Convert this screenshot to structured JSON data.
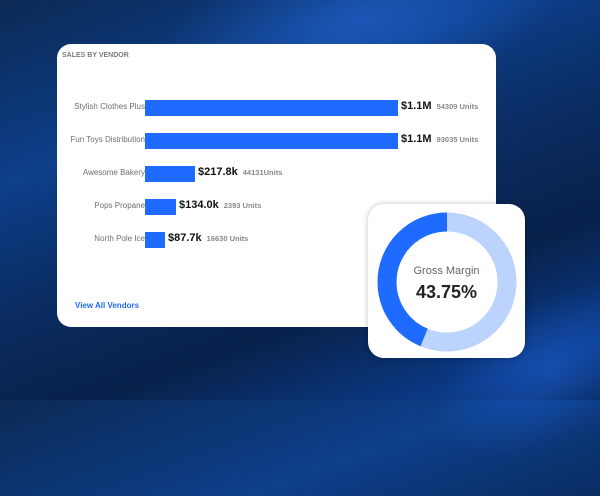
{
  "sales_card": {
    "title": "SALES BY VENDOR",
    "view_all_label": "View All Vendors"
  },
  "chart_data": {
    "type": "bar",
    "orientation": "horizontal",
    "title": "SALES BY VENDOR",
    "categories": [
      "Stylish Clothes Plus",
      "Fun Toys Distribution",
      "Awesome Bakery",
      "Pops Propane",
      "North Pole Ice"
    ],
    "values": [
      1100000,
      1100000,
      217800,
      134000,
      87700
    ],
    "value_labels": [
      "$1.1M",
      "$1.1M",
      "$217.8k",
      "$134.0k",
      "$87.7k"
    ],
    "unit_labels": [
      "54309 Units",
      "93035 Units",
      "44131Units",
      "2393 Units",
      "16630 Units"
    ],
    "bar_color": "#1f6bff"
  },
  "gross_margin": {
    "label": "Gross Margin",
    "value_text": "43.75%",
    "value": 43.75,
    "fill_color": "#1f6bff",
    "track_color": "#bcd4fd"
  }
}
